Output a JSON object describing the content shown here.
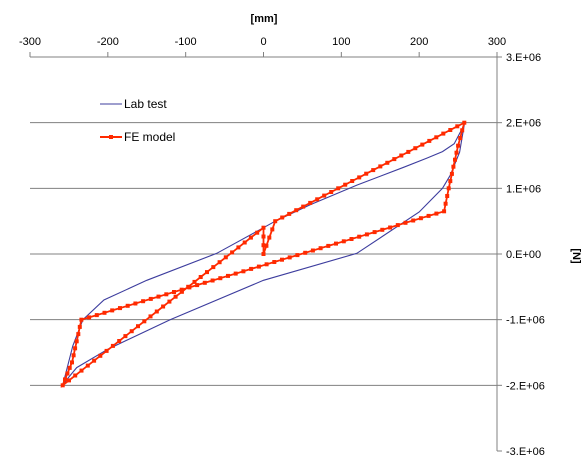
{
  "chart_data": {
    "type": "scatter",
    "title": "",
    "xlabel": "[mm]",
    "ylabel": "[N]",
    "x_axis_position": "top",
    "y_axis_position": "right",
    "xlim": [
      -300,
      300
    ],
    "ylim": [
      -3000000,
      3000000
    ],
    "x_ticks": [
      -300,
      -200,
      -100,
      0,
      100,
      200,
      300
    ],
    "x_tick_labels": [
      "-300",
      "-200",
      "-100",
      "0",
      "100",
      "200",
      "300"
    ],
    "y_ticks": [
      3000000,
      2000000,
      1000000,
      0,
      -1000000,
      -2000000,
      -3000000
    ],
    "y_tick_labels": [
      "3.E+06",
      "2.E+06",
      "1.E+06",
      "0.E+00",
      "-1.E+06",
      "-2.E+06",
      "-3.E+06"
    ],
    "grid": "horizontal",
    "legend_position": "top-left",
    "series": [
      {
        "name": "Lab test",
        "color": "#3d3d9e",
        "marker": "none",
        "x": [
          0,
          15,
          60,
          120,
          180,
          210,
          230,
          245,
          258,
          252,
          240,
          230,
          200,
          120,
          0,
          -120,
          -200,
          -240,
          -252,
          -258,
          -245,
          -232,
          -205,
          -150,
          -60,
          0
        ],
        "y": [
          400000,
          500000,
          750000,
          1050000,
          1320000,
          1460000,
          1560000,
          1680000,
          1970000,
          1550000,
          1200000,
          1000000,
          640000,
          10000,
          -400000,
          -1000000,
          -1450000,
          -1730000,
          -1900000,
          -2000000,
          -1400000,
          -1000000,
          -700000,
          -400000,
          10000,
          400000
        ]
      },
      {
        "name": "FE model",
        "color": "#ff2a00",
        "marker": "square",
        "x": [
          0,
          15,
          258,
          250,
          244,
          238,
          232,
          -234,
          -240,
          -246,
          -252,
          -258,
          0,
          0
        ],
        "y": [
          0,
          500000,
          2000000,
          1650000,
          1330000,
          1000000,
          650000,
          -1000000,
          -1330000,
          -1650000,
          -1820000,
          -2000000,
          400000,
          0
        ]
      }
    ]
  }
}
